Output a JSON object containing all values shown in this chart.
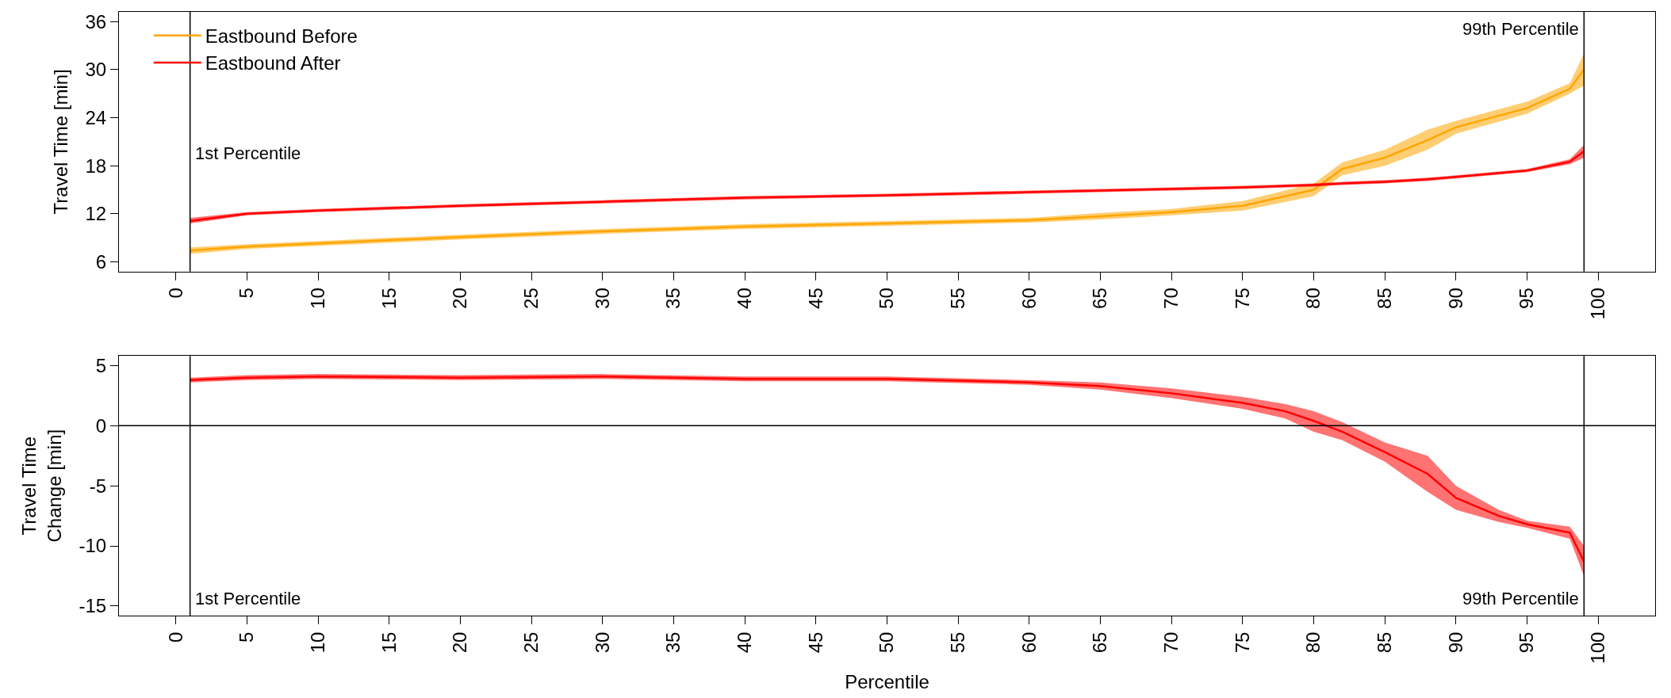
{
  "chart_data": [
    {
      "type": "line",
      "ylabel": "Travel Time [min]",
      "xlim": [
        -4,
        104
      ],
      "ylim": [
        4.8,
        37.2
      ],
      "xticks": [
        0,
        5,
        10,
        15,
        20,
        25,
        30,
        35,
        40,
        45,
        50,
        55,
        60,
        65,
        70,
        75,
        80,
        85,
        90,
        95,
        100
      ],
      "yticks": [
        6,
        12,
        18,
        24,
        30,
        36
      ],
      "legend": "top left",
      "marker": "none",
      "line_style": "solid",
      "x": [
        1,
        5,
        10,
        20,
        30,
        40,
        50,
        60,
        65,
        70,
        75,
        80,
        82,
        85,
        88,
        90,
        95,
        98,
        99
      ],
      "series": [
        {
          "name": "Eastbound Before",
          "color": "#ffa500",
          "values": [
            7.4,
            7.9,
            8.3,
            9.1,
            9.8,
            10.4,
            10.8,
            11.2,
            11.7,
            12.2,
            13,
            15,
            17.6,
            19,
            21.2,
            22.8,
            25.2,
            27.6,
            30
          ],
          "lower": [
            7,
            7.6,
            8,
            8.8,
            9.5,
            10.1,
            10.5,
            10.9,
            11.3,
            11.8,
            12.4,
            14.2,
            16.8,
            18,
            20,
            22,
            24.5,
            27,
            28
          ],
          "upper": [
            7.8,
            8.2,
            8.6,
            9.4,
            10.1,
            10.7,
            11.1,
            11.5,
            12.1,
            12.6,
            13.6,
            15.8,
            18.4,
            20,
            22.5,
            23.6,
            26,
            28.3,
            32
          ]
        },
        {
          "name": "Eastbound After",
          "color": "#ff0000",
          "values": [
            11.1,
            12,
            12.4,
            13,
            13.5,
            14,
            14.3,
            14.7,
            14.9,
            15.1,
            15.3,
            15.6,
            15.8,
            16,
            16.3,
            16.6,
            17.4,
            18.5,
            19.8
          ],
          "lower": [
            10.8,
            11.8,
            12.2,
            12.8,
            13.3,
            13.8,
            14.1,
            14.5,
            14.7,
            14.9,
            15.1,
            15.4,
            15.6,
            15.8,
            16.1,
            16.4,
            17.2,
            18.2,
            19
          ],
          "upper": [
            11.5,
            12.2,
            12.6,
            13.2,
            13.7,
            14.2,
            14.5,
            14.9,
            15.1,
            15.3,
            15.5,
            15.8,
            16,
            16.2,
            16.5,
            16.8,
            17.6,
            18.8,
            20.6
          ]
        }
      ],
      "ref_lines": [
        {
          "axis": "x",
          "value": 1,
          "label": "1st Percentile",
          "color": "#000000"
        },
        {
          "axis": "x",
          "value": 99,
          "label": "99th Percentile",
          "color": "#000000"
        }
      ]
    },
    {
      "type": "line",
      "xlabel": "Percentile",
      "ylabel": "Travel Time Change [min]",
      "xlim": [
        -4,
        104
      ],
      "ylim": [
        -15.8,
        5.8
      ],
      "xticks": [
        0,
        5,
        10,
        15,
        20,
        25,
        30,
        35,
        40,
        45,
        50,
        55,
        60,
        65,
        70,
        75,
        80,
        85,
        90,
        95,
        100
      ],
      "yticks": [
        -15,
        -10,
        -5,
        0,
        5
      ],
      "marker": "none",
      "line_style": "solid",
      "x": [
        1,
        5,
        10,
        20,
        30,
        40,
        50,
        60,
        65,
        70,
        75,
        78,
        80,
        82,
        85,
        88,
        90,
        93,
        95,
        98,
        99
      ],
      "series": [
        {
          "color": "#ff0000",
          "values": [
            3.8,
            4,
            4.1,
            4,
            4.1,
            3.9,
            3.9,
            3.6,
            3.3,
            2.7,
            1.9,
            1.2,
            0.4,
            -0.5,
            -2.2,
            -4,
            -6,
            -7.5,
            -8.2,
            -8.9,
            -11.3
          ],
          "lower": [
            3.6,
            3.8,
            3.9,
            3.8,
            3.9,
            3.7,
            3.7,
            3.4,
            3,
            2.3,
            1.4,
            0.6,
            -0.5,
            -1.2,
            -3,
            -5.5,
            -7,
            -8,
            -8.5,
            -9.4,
            -12.5
          ],
          "upper": [
            4,
            4.2,
            4.3,
            4.2,
            4.3,
            4.1,
            4.1,
            3.8,
            3.6,
            3.1,
            2.4,
            1.8,
            1.2,
            0.3,
            -1.4,
            -2.5,
            -5,
            -7,
            -7.9,
            -8.4,
            -10
          ]
        }
      ],
      "ref_lines": [
        {
          "axis": "y",
          "value": 0,
          "color": "#000000"
        },
        {
          "axis": "x",
          "value": 1,
          "label": "1st Percentile",
          "color": "#000000"
        },
        {
          "axis": "x",
          "value": 99,
          "label": "99th Percentile",
          "color": "#000000"
        }
      ]
    }
  ]
}
